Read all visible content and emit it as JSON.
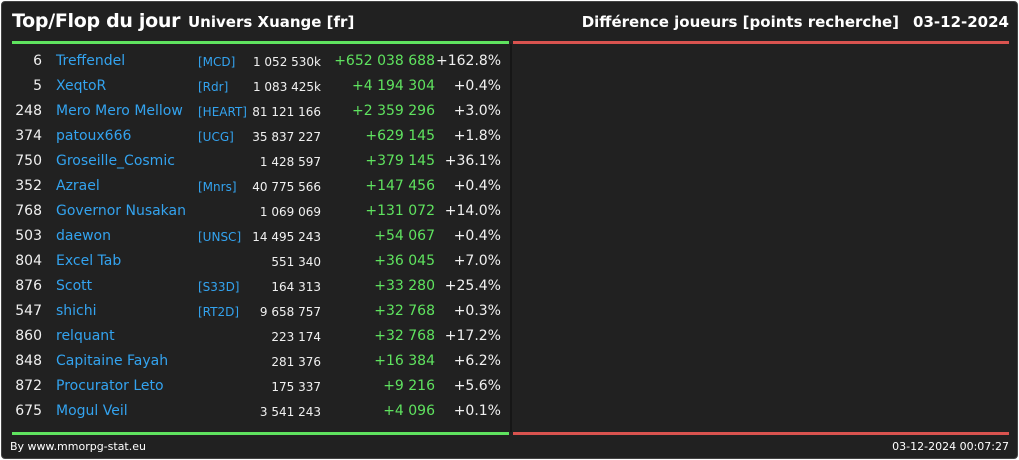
{
  "header": {
    "title": "Top/Flop du jour",
    "universe": "Univers Xuange [fr]",
    "metric": "Différence joueurs [points recherche]",
    "date": "03-12-2024"
  },
  "top": {
    "rows": [
      {
        "rank": "6",
        "name": "Treffendel",
        "alliance": "[MCD]",
        "points": "1 052 530k",
        "diff": "+652 038 688",
        "pct": "+162.8%"
      },
      {
        "rank": "5",
        "name": "XeqtoR",
        "alliance": "[Rdr]",
        "points": "1 083 425k",
        "diff": "+4 194 304",
        "pct": "+0.4%"
      },
      {
        "rank": "248",
        "name": "Mero Mero Mellow",
        "alliance": "[HEART]",
        "points": "81 121 166",
        "diff": "+2 359 296",
        "pct": "+3.0%"
      },
      {
        "rank": "374",
        "name": "patoux666",
        "alliance": "[UCG]",
        "points": "35 837 227",
        "diff": "+629 145",
        "pct": "+1.8%"
      },
      {
        "rank": "750",
        "name": "Groseille_Cosmic",
        "alliance": "",
        "points": "1 428 597",
        "diff": "+379 145",
        "pct": "+36.1%"
      },
      {
        "rank": "352",
        "name": "Azrael",
        "alliance": "[Mnrs]",
        "points": "40 775 566",
        "diff": "+147 456",
        "pct": "+0.4%"
      },
      {
        "rank": "768",
        "name": "Governor Nusakan",
        "alliance": "",
        "points": "1 069 069",
        "diff": "+131 072",
        "pct": "+14.0%"
      },
      {
        "rank": "503",
        "name": "daewon",
        "alliance": "[UNSC]",
        "points": "14 495 243",
        "diff": "+54 067",
        "pct": "+0.4%"
      },
      {
        "rank": "804",
        "name": "Excel Tab",
        "alliance": "",
        "points": "551 340",
        "diff": "+36 045",
        "pct": "+7.0%"
      },
      {
        "rank": "876",
        "name": "Scott",
        "alliance": "[S33D]",
        "points": "164 313",
        "diff": "+33 280",
        "pct": "+25.4%"
      },
      {
        "rank": "547",
        "name": "shichi",
        "alliance": "[RT2D]",
        "points": "9 658 757",
        "diff": "+32 768",
        "pct": "+0.3%"
      },
      {
        "rank": "860",
        "name": "relquant",
        "alliance": "",
        "points": "223 174",
        "diff": "+32 768",
        "pct": "+17.2%"
      },
      {
        "rank": "848",
        "name": "Capitaine Fayah",
        "alliance": "",
        "points": "281 376",
        "diff": "+16 384",
        "pct": "+6.2%"
      },
      {
        "rank": "872",
        "name": "Procurator Leto",
        "alliance": "",
        "points": "175 337",
        "diff": "+9 216",
        "pct": "+5.6%"
      },
      {
        "rank": "675",
        "name": "Mogul Veil",
        "alliance": "",
        "points": "3 541 243",
        "diff": "+4 096",
        "pct": "+0.1%"
      }
    ]
  },
  "footer": {
    "credit": "By www.mmorpg-stat.eu",
    "timestamp": "03-12-2024 00:07:27"
  },
  "colors": {
    "background": "#212121",
    "top_accent": "#5fe35f",
    "flop_accent": "#d9534f",
    "link": "#33a3ef",
    "positive": "#5fe35f"
  }
}
